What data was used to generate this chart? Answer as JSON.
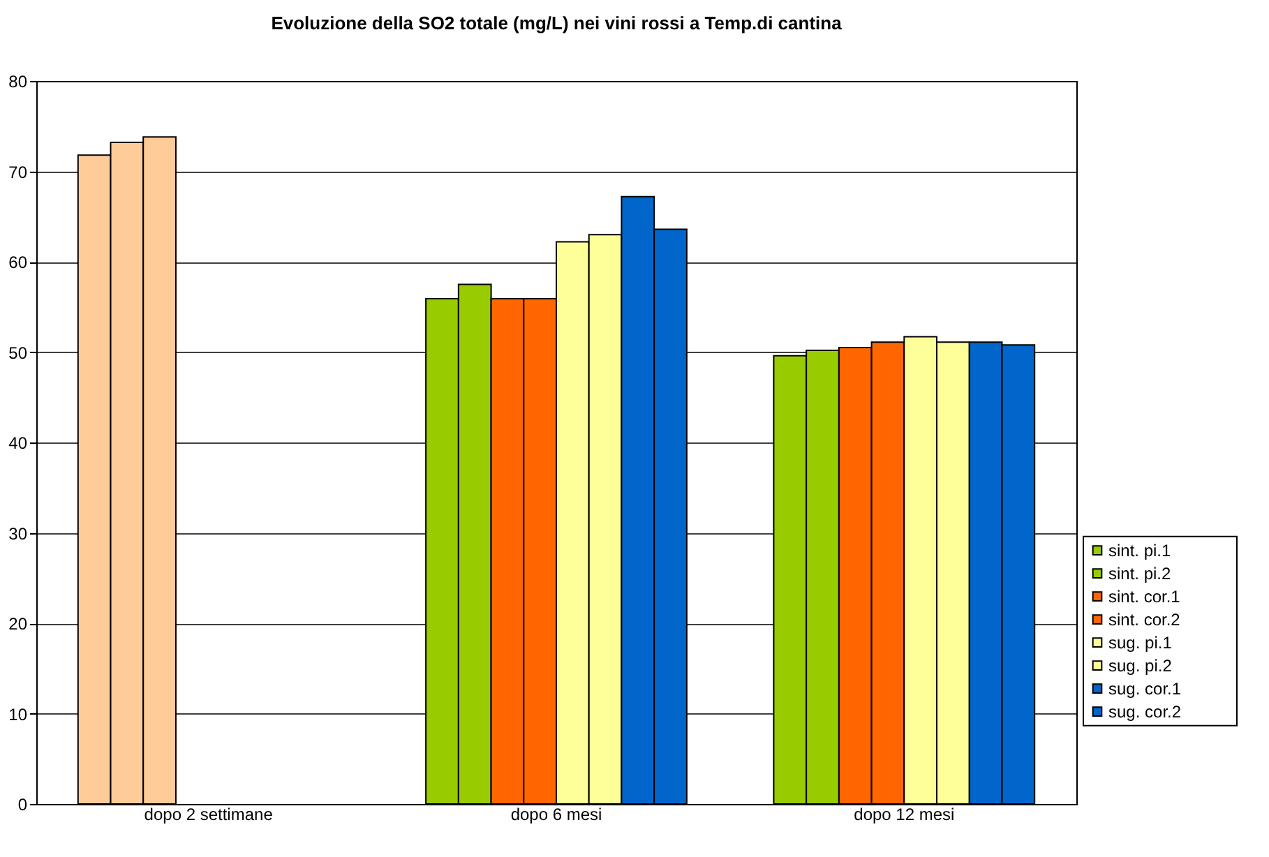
{
  "chart_data": {
    "type": "bar",
    "title": "Evoluzione della SO2 totale (mg/L)  nei vini rossi a Temp.di cantina",
    "categories": [
      "dopo 2 settimane",
      "dopo 6 mesi",
      "dopo 12 mesi"
    ],
    "series": [
      {
        "name": "sint. pi.1",
        "color": "#99cc00",
        "colors": [
          "#ffcc99",
          "#99cc00",
          "#99cc00"
        ],
        "values": [
          71.8,
          55.9,
          49.6
        ]
      },
      {
        "name": "sint. pi.2",
        "color": "#99cc00",
        "colors": [
          "#ffcc99",
          "#99cc00",
          "#99cc00"
        ],
        "values": [
          73.2,
          57.5,
          50.2
        ]
      },
      {
        "name": "sint. cor.1",
        "color": "#ff6600",
        "colors": [
          "#ffcc99",
          "#ff6600",
          "#ff6600"
        ],
        "values": [
          73.8,
          55.9,
          50.5
        ]
      },
      {
        "name": "sint. cor.2",
        "color": "#ff6600",
        "values": [
          null,
          55.9,
          51.1
        ]
      },
      {
        "name": "sug. pi.1",
        "color": "#ffff99",
        "values": [
          null,
          62.2,
          51.7
        ]
      },
      {
        "name": "sug. pi.2",
        "color": "#ffff99",
        "values": [
          null,
          63.0,
          51.1
        ]
      },
      {
        "name": "sug. cor.1",
        "color": "#0066cc",
        "values": [
          null,
          67.2,
          51.1
        ]
      },
      {
        "name": "sug. cor.2",
        "color": "#0066cc",
        "values": [
          null,
          63.6,
          50.8
        ]
      }
    ],
    "ylim": [
      0,
      80
    ],
    "yticks": [
      0,
      10,
      20,
      30,
      40,
      50,
      60,
      70,
      80
    ],
    "grid": "y",
    "legend": "right"
  }
}
